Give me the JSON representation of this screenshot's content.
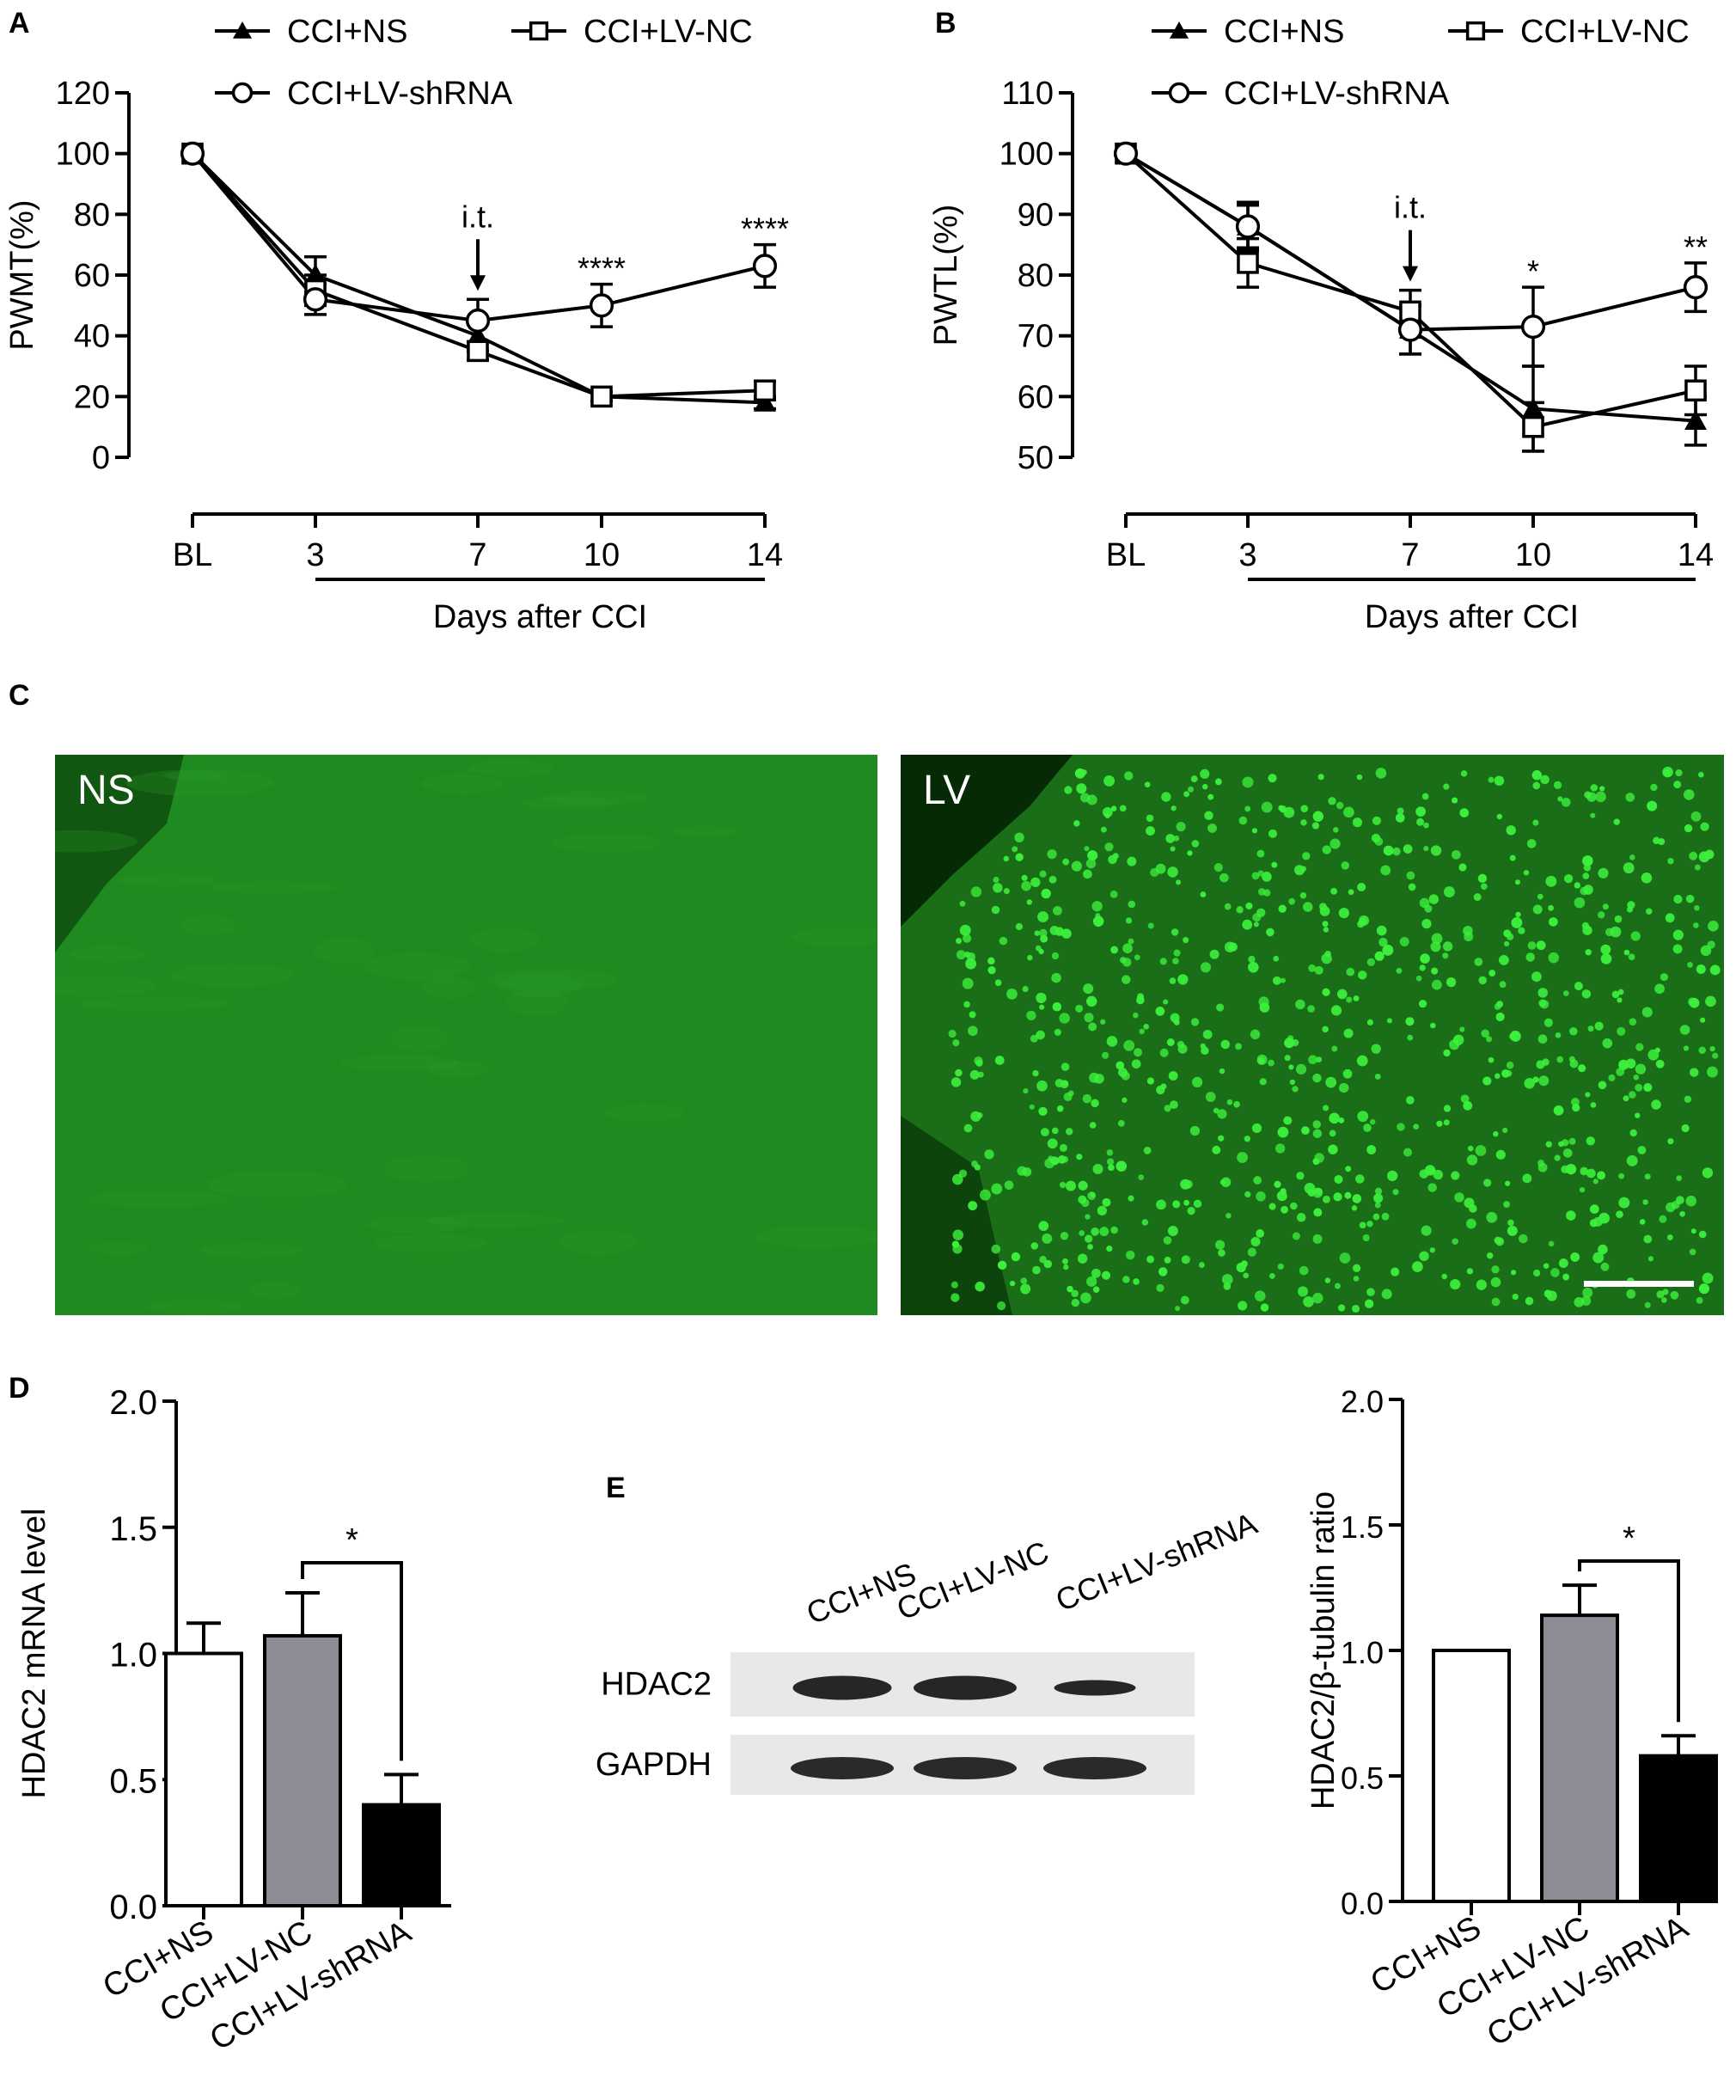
{
  "panels": {
    "a": "A",
    "b": "B",
    "c": "C",
    "d": "D",
    "e": "E"
  },
  "micrographs": {
    "left_label": "NS",
    "right_label": "LV",
    "left_color": "#1f8a1f",
    "right_color": "#1a6e18",
    "cell_color": "#3cf03c"
  },
  "blot": {
    "lanes": [
      "CCI+NS",
      "CCI+LV-NC",
      "CCI+LV-shRNA"
    ],
    "rows": [
      "HDAC2",
      "GAPDH"
    ]
  },
  "chart_data": [
    {
      "id": "A",
      "type": "line",
      "ylabel": "PWMT(%)",
      "xlabel": "Days after CCI",
      "x": [
        "BL",
        "3",
        "7",
        "10",
        "14"
      ],
      "ylim": [
        0,
        120
      ],
      "yticks": [
        0,
        20,
        40,
        60,
        80,
        100,
        120
      ],
      "annotation": "i.t.",
      "series": [
        {
          "name": "CCI+NS",
          "marker": "triangle",
          "values": [
            100,
            60,
            40,
            20,
            18
          ],
          "errors": [
            0,
            6,
            5,
            1.5,
            2
          ]
        },
        {
          "name": "CCI+LV-NC",
          "marker": "square",
          "values": [
            100,
            55,
            35,
            20,
            22
          ],
          "errors": [
            0,
            5,
            3,
            1.5,
            3
          ]
        },
        {
          "name": "CCI+LV-shRNA",
          "marker": "circle",
          "values": [
            100,
            52,
            45,
            50,
            63
          ],
          "errors": [
            0,
            5,
            7,
            7,
            7
          ]
        }
      ],
      "significance": [
        {
          "x": "10",
          "text": "****",
          "y": 57
        },
        {
          "x": "14",
          "text": "****",
          "y": 70
        }
      ]
    },
    {
      "id": "B",
      "type": "line",
      "ylabel": "PWTL(%)",
      "xlabel": "Days after CCI",
      "x": [
        "BL",
        "3",
        "7",
        "10",
        "14"
      ],
      "ylim": [
        50,
        110
      ],
      "yticks": [
        50,
        60,
        70,
        80,
        90,
        100,
        110
      ],
      "annotation": "i.t.",
      "series": [
        {
          "name": "CCI+NS",
          "marker": "triangle",
          "values": [
            100,
            88,
            71,
            58,
            56
          ],
          "errors": [
            0,
            3.5,
            4,
            7,
            4
          ]
        },
        {
          "name": "CCI+LV-NC",
          "marker": "square",
          "values": [
            100,
            82,
            74,
            55,
            61
          ],
          "errors": [
            0,
            4,
            3.5,
            4,
            4
          ]
        },
        {
          "name": "CCI+LV-shRNA",
          "marker": "circle",
          "values": [
            100,
            88,
            71,
            71.5,
            78
          ],
          "errors": [
            0,
            4,
            4,
            6.5,
            4
          ]
        }
      ],
      "significance": [
        {
          "x": "10",
          "text": "*",
          "y": 78
        },
        {
          "x": "14",
          "text": "**",
          "y": 82
        }
      ]
    },
    {
      "id": "D",
      "type": "bar",
      "ylabel": "HDAC2 mRNA level",
      "categories": [
        "CCI+NS",
        "CCI+LV-NC",
        "CCI+LV-shRNA"
      ],
      "values": [
        1.0,
        1.07,
        0.4
      ],
      "errors": [
        0.12,
        0.17,
        0.12
      ],
      "fills": [
        "#ffffff",
        "#8c8c94",
        "#000000"
      ],
      "ylim": [
        0,
        2.0
      ],
      "yticks": [
        "0.0",
        "0.5",
        "1.0",
        "1.5",
        "2.0"
      ],
      "significance": {
        "from": 1,
        "to": 2,
        "text": "*"
      }
    },
    {
      "id": "E",
      "type": "bar",
      "ylabel": "HDAC2/β-tubulin ratio",
      "categories": [
        "CCI+NS",
        "CCI+LV-NC",
        "CCI+LV-shRNA"
      ],
      "values": [
        1.0,
        1.14,
        0.58
      ],
      "errors": [
        0,
        0.12,
        0.08
      ],
      "fills": [
        "#ffffff",
        "#8c8c94",
        "#000000"
      ],
      "ylim": [
        0,
        2.0
      ],
      "yticks": [
        "0.0",
        "0.5",
        "1.0",
        "1.5",
        "2.0"
      ],
      "significance": {
        "from": 1,
        "to": 2,
        "text": "*"
      }
    }
  ]
}
